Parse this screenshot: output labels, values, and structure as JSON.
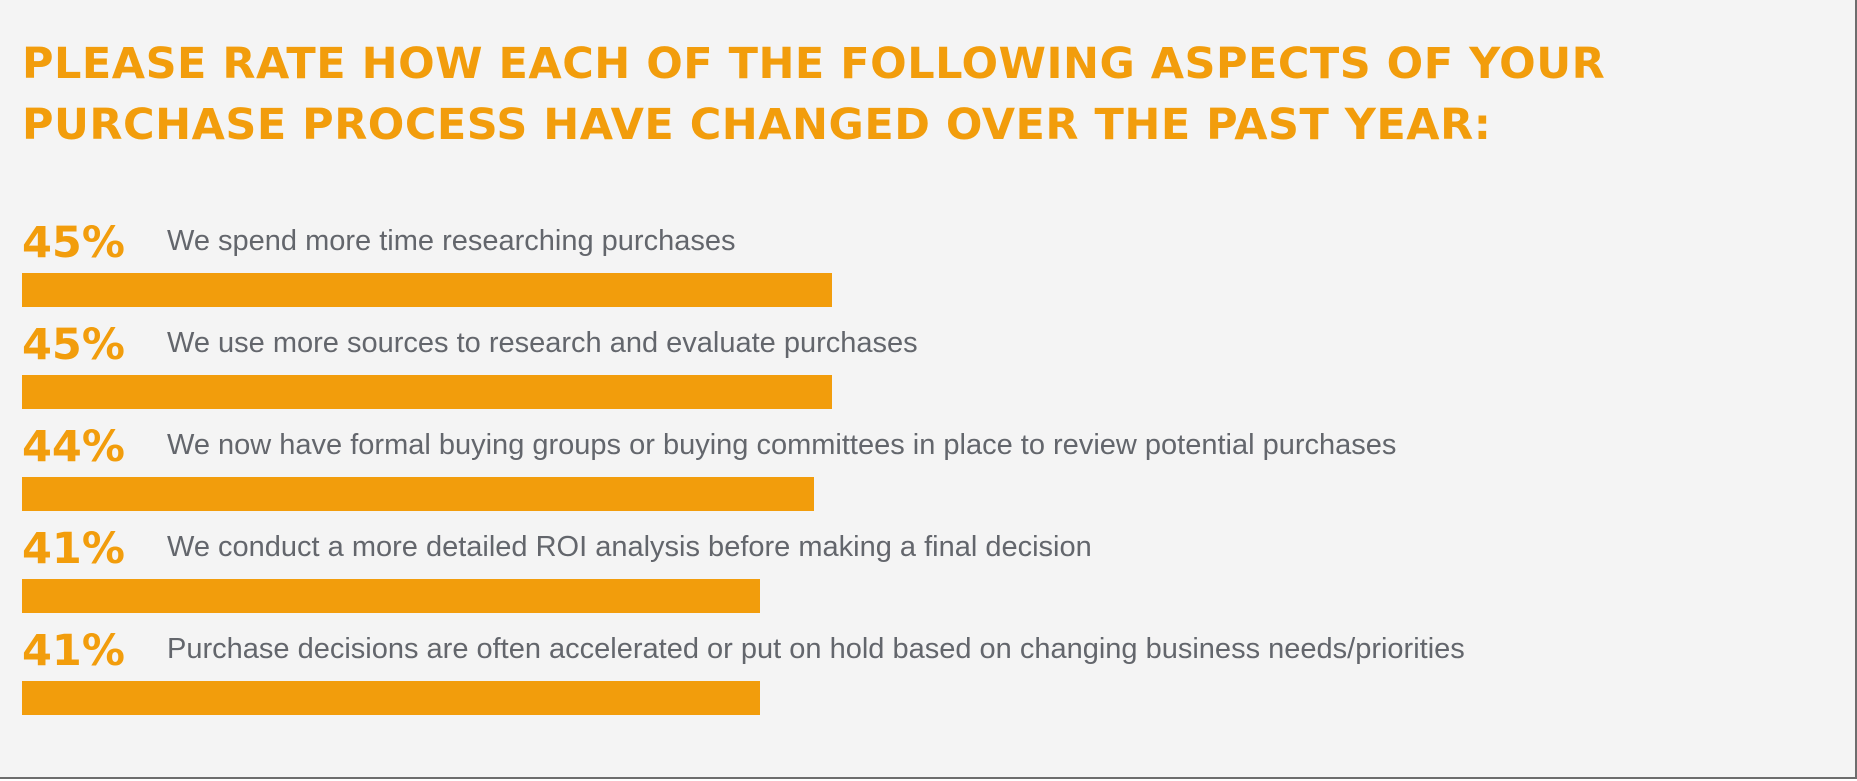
{
  "title": "PLEASE RATE HOW EACH OF THE FOLLOWING ASPECTS OF YOUR PURCHASE PROCESS HAVE CHANGED OVER THE PAST YEAR:",
  "colors": {
    "accent": "#f29d0c",
    "label_text": "#63666c",
    "background": "#f4f4f4"
  },
  "chart_data": {
    "type": "bar",
    "orientation": "horizontal",
    "title": "PLEASE RATE HOW EACH OF THE FOLLOWING ASPECTS OF YOUR PURCHASE PROCESS HAVE CHANGED OVER THE PAST YEAR:",
    "categories": [
      "We spend more time researching purchases",
      "We use more sources to research and evaluate purchases",
      "We now have formal buying groups or buying committees in place to review potential purchases",
      "We conduct a more detailed ROI analysis before making a final decision",
      "Purchase decisions are often accelerated or put on hold based on changing business needs/priorities"
    ],
    "values": [
      45,
      45,
      44,
      41,
      41
    ],
    "value_labels": [
      "45%",
      "45%",
      "44%",
      "41%",
      "41%"
    ],
    "unit": "%",
    "xlim": [
      0,
      100
    ],
    "grid": false,
    "legend": "none"
  }
}
